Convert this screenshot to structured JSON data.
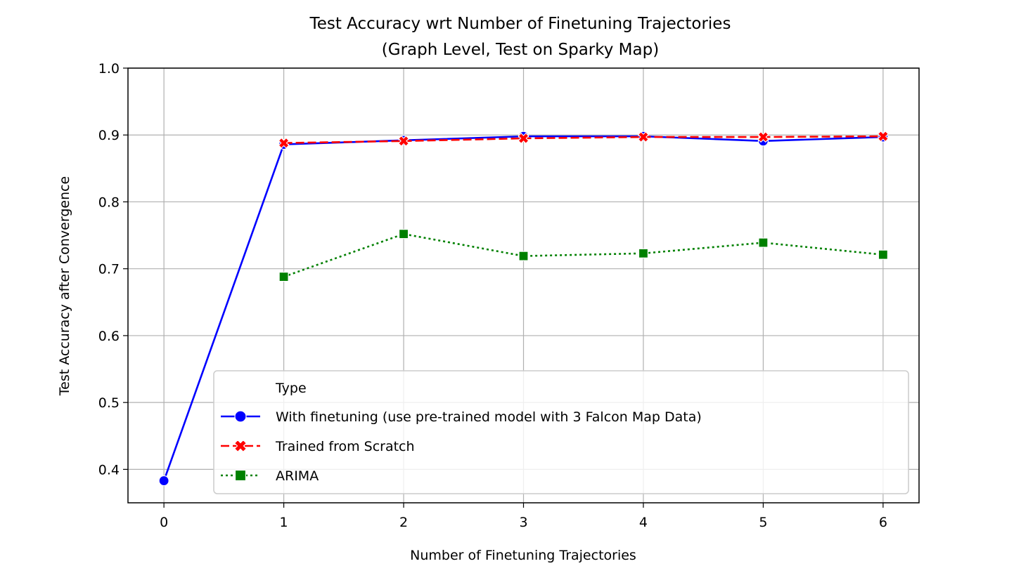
{
  "chart_data": {
    "type": "line",
    "title_line1": "Test Accuracy wrt Number of Finetuning Trajectories",
    "title_line2": "(Graph Level, Test on Sparky Map)",
    "xlabel": "Number of Finetuning Trajectories",
    "ylabel": "Test Accuracy after Convergence",
    "xlim": [
      -0.3,
      6.3
    ],
    "ylim": [
      0.35,
      1.0
    ],
    "xticks": [
      0,
      1,
      2,
      3,
      4,
      5,
      6
    ],
    "yticks": [
      0.4,
      0.5,
      0.6,
      0.7,
      0.8,
      0.9,
      1.0
    ],
    "ytick_labels": [
      "0.4",
      "0.5",
      "0.6",
      "0.7",
      "0.8",
      "0.9",
      "1.0"
    ],
    "grid": true,
    "legend": {
      "title": "Type",
      "placement": "lower-right"
    },
    "series": [
      {
        "name": "With finetuning (use pre-trained model with 3 Falcon Map Data)",
        "color": "#0000ff",
        "linestyle": "solid",
        "marker": "circle",
        "x": [
          0,
          1,
          2,
          3,
          4,
          5,
          6
        ],
        "y": [
          0.383,
          0.886,
          0.892,
          0.898,
          0.898,
          0.891,
          0.897
        ]
      },
      {
        "name": "Trained from Scratch",
        "color": "#ff0000",
        "linestyle": "dashed",
        "marker": "x",
        "x": [
          1,
          2,
          3,
          4,
          5,
          6
        ],
        "y": [
          0.888,
          0.891,
          0.895,
          0.897,
          0.897,
          0.898
        ]
      },
      {
        "name": "ARIMA",
        "color": "#008000",
        "linestyle": "dotted",
        "marker": "square",
        "x": [
          1,
          2,
          3,
          4,
          5,
          6
        ],
        "y": [
          0.688,
          0.752,
          0.719,
          0.723,
          0.739,
          0.721
        ]
      }
    ]
  }
}
